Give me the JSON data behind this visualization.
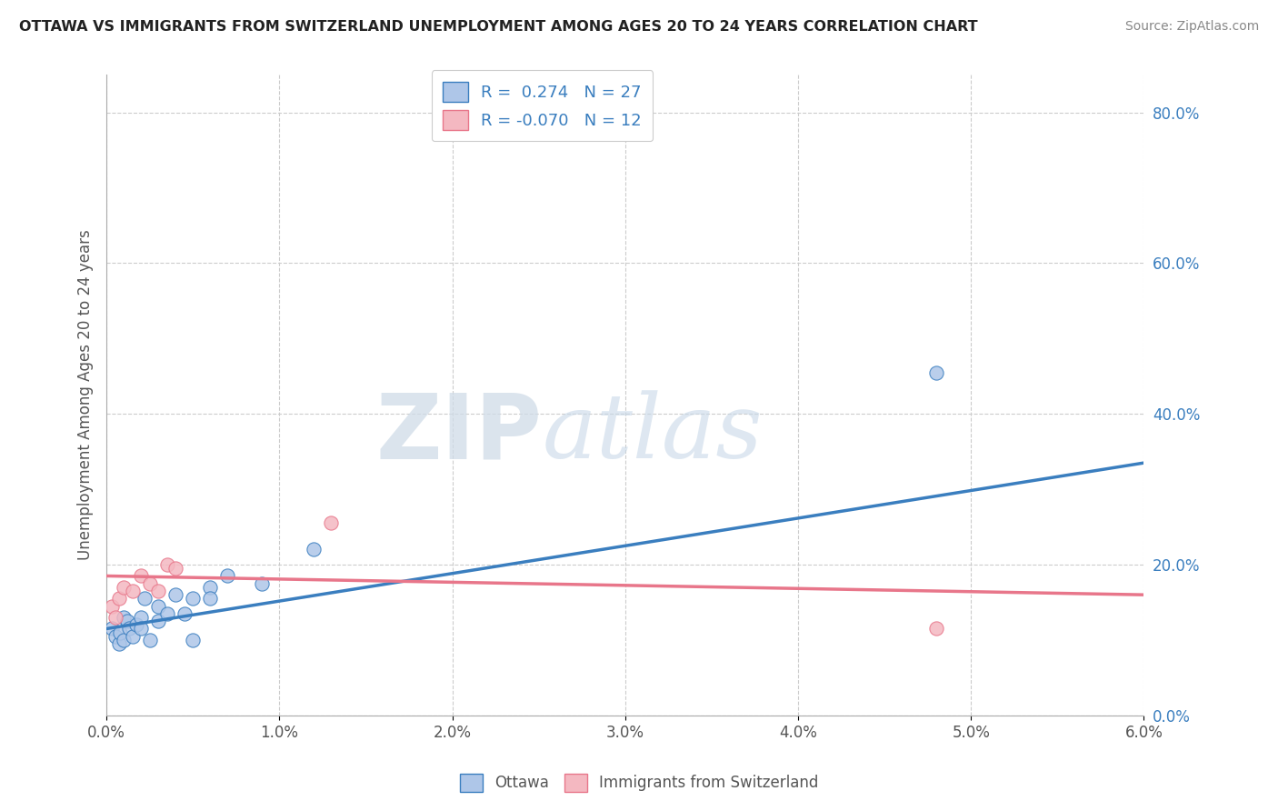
{
  "title": "OTTAWA VS IMMIGRANTS FROM SWITZERLAND UNEMPLOYMENT AMONG AGES 20 TO 24 YEARS CORRELATION CHART",
  "source": "Source: ZipAtlas.com",
  "ylabel": "Unemployment Among Ages 20 to 24 years",
  "xlim": [
    0.0,
    0.06
  ],
  "ylim": [
    0.0,
    0.85
  ],
  "x_ticks": [
    0.0,
    0.01,
    0.02,
    0.03,
    0.04,
    0.05,
    0.06
  ],
  "x_tick_labels": [
    "0.0%",
    "1.0%",
    "2.0%",
    "3.0%",
    "4.0%",
    "5.0%",
    "6.0%"
  ],
  "y_ticks": [
    0.0,
    0.2,
    0.4,
    0.6,
    0.8
  ],
  "y_tick_labels": [
    "0.0%",
    "20.0%",
    "40.0%",
    "60.0%",
    "80.0%"
  ],
  "ottawa_color": "#aec6e8",
  "swiss_color": "#f4b8c1",
  "ottawa_line_color": "#3a7ebf",
  "swiss_line_color": "#e8768a",
  "r_ottawa": 0.274,
  "n_ottawa": 27,
  "r_swiss": -0.07,
  "n_swiss": 12,
  "watermark_zip": "ZIP",
  "watermark_atlas": "atlas",
  "background_color": "#ffffff",
  "grid_color": "#cccccc",
  "ottawa_scatter_x": [
    0.0003,
    0.0005,
    0.0007,
    0.0008,
    0.001,
    0.001,
    0.0012,
    0.0013,
    0.0015,
    0.0017,
    0.002,
    0.002,
    0.0022,
    0.0025,
    0.003,
    0.003,
    0.0035,
    0.004,
    0.0045,
    0.005,
    0.005,
    0.006,
    0.006,
    0.007,
    0.009,
    0.012,
    0.048
  ],
  "ottawa_scatter_y": [
    0.115,
    0.105,
    0.095,
    0.11,
    0.13,
    0.1,
    0.125,
    0.115,
    0.105,
    0.12,
    0.13,
    0.115,
    0.155,
    0.1,
    0.145,
    0.125,
    0.135,
    0.16,
    0.135,
    0.155,
    0.1,
    0.17,
    0.155,
    0.185,
    0.175,
    0.22,
    0.455
  ],
  "swiss_scatter_x": [
    0.0003,
    0.0005,
    0.0007,
    0.001,
    0.0015,
    0.002,
    0.0025,
    0.003,
    0.0035,
    0.004,
    0.013,
    0.048
  ],
  "swiss_scatter_y": [
    0.145,
    0.13,
    0.155,
    0.17,
    0.165,
    0.185,
    0.175,
    0.165,
    0.2,
    0.195,
    0.255,
    0.115
  ],
  "ottawa_line_x0": 0.0,
  "ottawa_line_y0": 0.115,
  "ottawa_line_x1": 0.06,
  "ottawa_line_y1": 0.335,
  "swiss_line_x0": 0.0,
  "swiss_line_y0": 0.185,
  "swiss_line_x1": 0.06,
  "swiss_line_y1": 0.16
}
